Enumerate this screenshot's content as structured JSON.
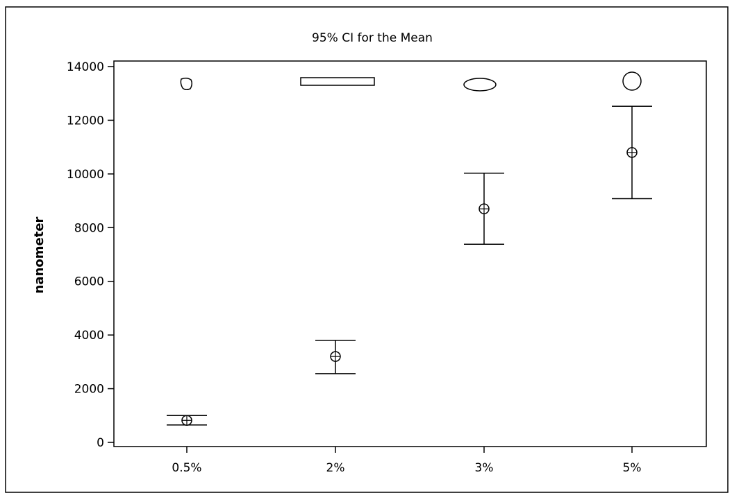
{
  "chart_data": {
    "type": "interval",
    "title": "95% CI for the Mean",
    "xlabel": "",
    "ylabel": "nanometer",
    "categories": [
      "0.5%",
      "2%",
      "3%",
      "5%"
    ],
    "ylim": [
      0,
      14000
    ],
    "yticks": [
      0,
      2000,
      4000,
      6000,
      8000,
      10000,
      12000,
      14000
    ],
    "grid": false,
    "series": [
      {
        "mean": [
          820,
          3200,
          8700,
          10800
        ],
        "lower": [
          650,
          2560,
          7380,
          9080
        ],
        "upper": [
          1000,
          3800,
          10030,
          12520
        ]
      }
    ],
    "shape_icons": [
      "irregular-blob",
      "long-rectangle",
      "ellipse",
      "circle"
    ]
  }
}
